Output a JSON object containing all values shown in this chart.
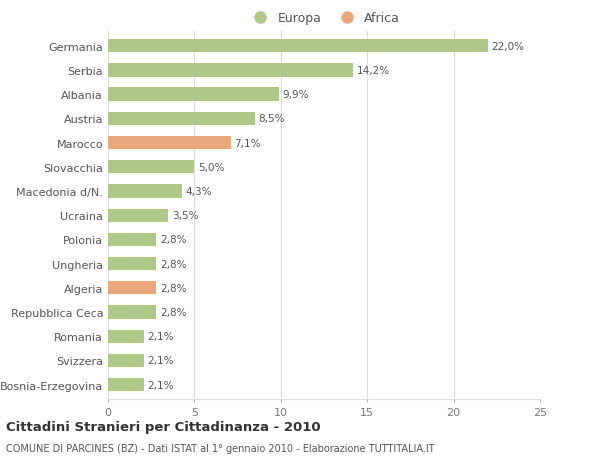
{
  "categories": [
    "Germania",
    "Serbia",
    "Albania",
    "Austria",
    "Marocco",
    "Slovacchia",
    "Macedonia d/N.",
    "Ucraina",
    "Polonia",
    "Ungheria",
    "Algeria",
    "Repubblica Ceca",
    "Romania",
    "Svizzera",
    "Bosnia-Erzegovina"
  ],
  "values": [
    22.0,
    14.2,
    9.9,
    8.5,
    7.1,
    5.0,
    4.3,
    3.5,
    2.8,
    2.8,
    2.8,
    2.8,
    2.1,
    2.1,
    2.1
  ],
  "labels": [
    "22,0%",
    "14,2%",
    "9,9%",
    "8,5%",
    "7,1%",
    "5,0%",
    "4,3%",
    "3,5%",
    "2,8%",
    "2,8%",
    "2,8%",
    "2,8%",
    "2,1%",
    "2,1%",
    "2,1%"
  ],
  "continents": [
    "Europa",
    "Europa",
    "Europa",
    "Europa",
    "Africa",
    "Europa",
    "Europa",
    "Europa",
    "Europa",
    "Europa",
    "Africa",
    "Europa",
    "Europa",
    "Europa",
    "Europa"
  ],
  "color_europa": "#adc889",
  "color_africa": "#e8a87c",
  "bg_color": "#ffffff",
  "grid_color": "#dddddd",
  "title": "Cittadini Stranieri per Cittadinanza - 2010",
  "subtitle": "COMUNE DI PARCINES (BZ) - Dati ISTAT al 1° gennaio 2010 - Elaborazione TUTTITALIA.IT",
  "xlim": [
    0,
    25
  ],
  "xticks": [
    0,
    5,
    10,
    15,
    20,
    25
  ],
  "legend_europa": "Europa",
  "legend_africa": "Africa",
  "bar_height": 0.55
}
